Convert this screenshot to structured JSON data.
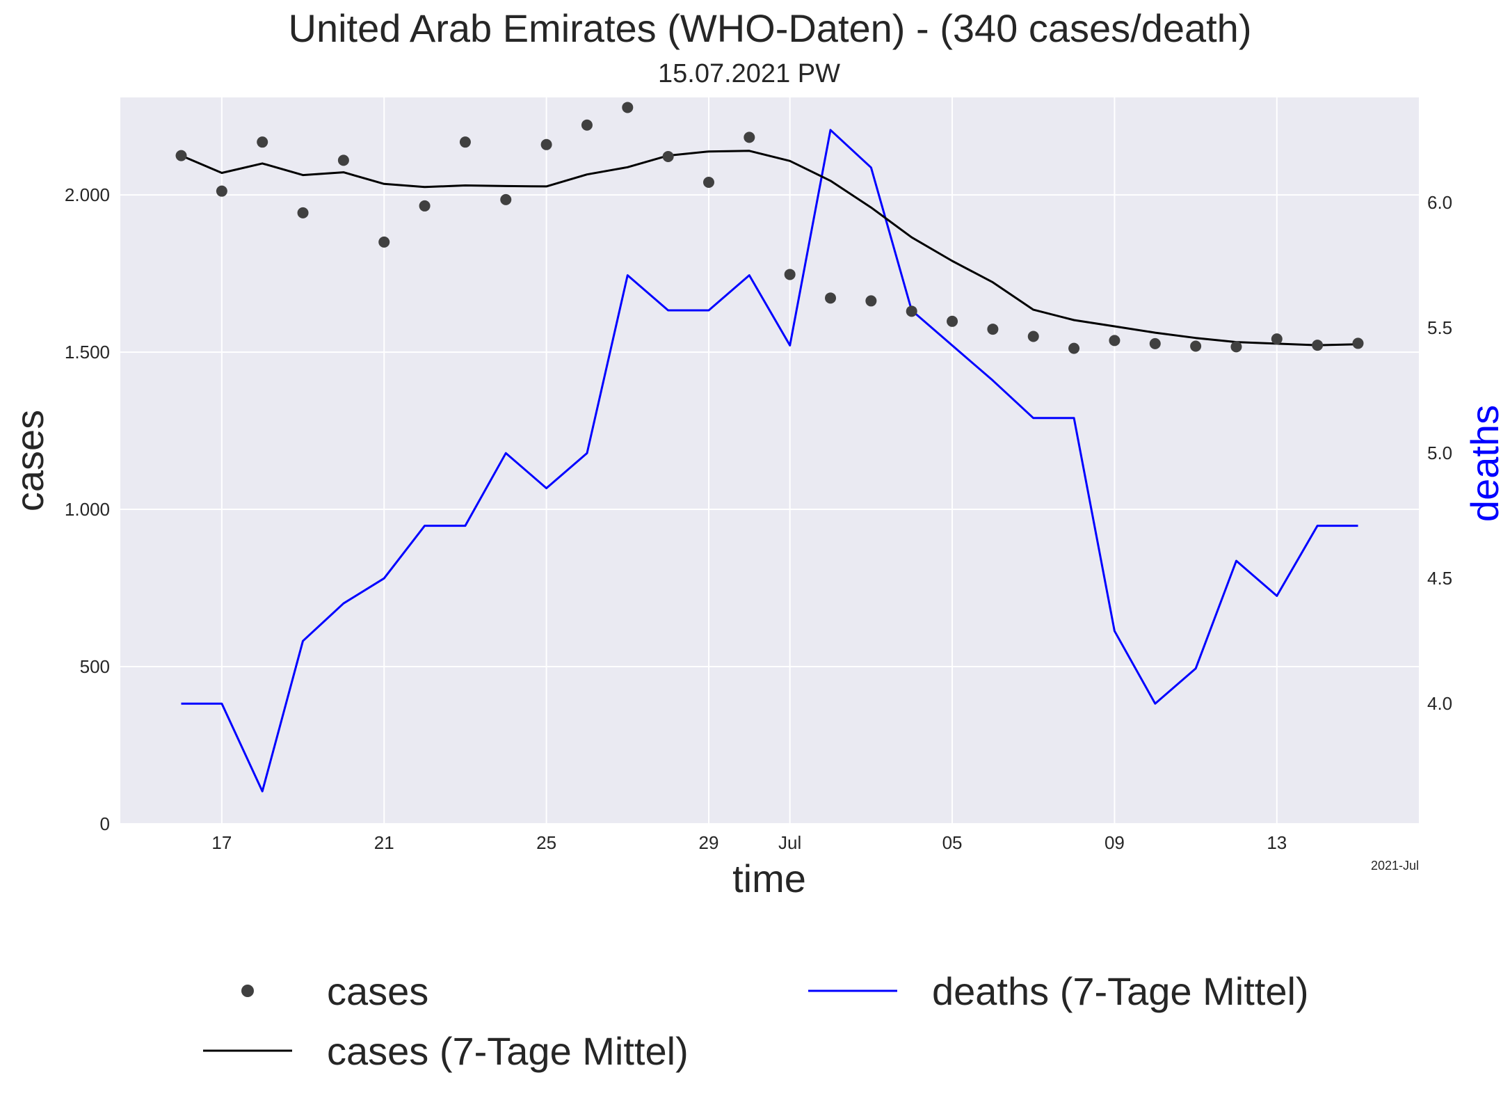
{
  "chart_data": {
    "type": "line",
    "title": "United Arab Emirates (WHO-Daten) - (340 cases/death)",
    "subtitle": "15.07.2021 PW",
    "xlabel": "time",
    "ylabel": "cases",
    "ylabel_right": "deaths",
    "x_offset_label": "2021-Jul",
    "x_dates": [
      "2021-06-16",
      "2021-06-17",
      "2021-06-18",
      "2021-06-19",
      "2021-06-20",
      "2021-06-21",
      "2021-06-22",
      "2021-06-23",
      "2021-06-24",
      "2021-06-25",
      "2021-06-26",
      "2021-06-27",
      "2021-06-28",
      "2021-06-29",
      "2021-06-30",
      "2021-07-01",
      "2021-07-02",
      "2021-07-03",
      "2021-07-04",
      "2021-07-05",
      "2021-07-06",
      "2021-07-07",
      "2021-07-08",
      "2021-07-09",
      "2021-07-10",
      "2021-07-11",
      "2021-07-12",
      "2021-07-13",
      "2021-07-14",
      "2021-07-15"
    ],
    "x_ticks": [
      {
        "date": "2021-06-17",
        "label": "17"
      },
      {
        "date": "2021-06-21",
        "label": "21"
      },
      {
        "date": "2021-06-25",
        "label": "25"
      },
      {
        "date": "2021-06-29",
        "label": "29"
      },
      {
        "date": "2021-07-01",
        "label": "Jul"
      },
      {
        "date": "2021-07-05",
        "label": "05"
      },
      {
        "date": "2021-07-09",
        "label": "09"
      },
      {
        "date": "2021-07-13",
        "label": "13"
      }
    ],
    "xlim": [
      "2021-06-14T12:00",
      "2021-07-16T12:00"
    ],
    "ylim_left": [
      0,
      2310
    ],
    "yticks_left": [
      {
        "value": 0,
        "label": "0"
      },
      {
        "value": 500,
        "label": "500"
      },
      {
        "value": 1000,
        "label": "1.000"
      },
      {
        "value": 1500,
        "label": "1.500"
      },
      {
        "value": 2000,
        "label": "2.000"
      }
    ],
    "ylim_right": [
      3.52,
      6.42
    ],
    "yticks_right": [
      {
        "value": 4.0,
        "label": "4.0"
      },
      {
        "value": 4.5,
        "label": "4.5"
      },
      {
        "value": 5.0,
        "label": "5.0"
      },
      {
        "value": 5.5,
        "label": "5.5"
      },
      {
        "value": 6.0,
        "label": "6.0"
      }
    ],
    "grid": true,
    "legend_position": "bottom",
    "series": [
      {
        "name": "cases",
        "axis": "left",
        "style": "scatter",
        "color": "#404040",
        "values": [
          2125,
          2012,
          2168,
          1943,
          2110,
          1850,
          1965,
          2168,
          1985,
          2160,
          2222,
          2278,
          2122,
          2040,
          2183,
          1747,
          1672,
          1663,
          1630,
          1598,
          1573,
          1550,
          1512,
          1537,
          1527,
          1519,
          1517,
          1542,
          1522,
          1528
        ]
      },
      {
        "name": "cases (7-Tage Mittel)",
        "axis": "left",
        "style": "line",
        "color": "#000000",
        "values": [
          2125,
          2070,
          2100,
          2063,
          2072,
          2035,
          2025,
          2030,
          2028,
          2027,
          2065,
          2088,
          2125,
          2138,
          2140,
          2108,
          2045,
          1960,
          1865,
          1790,
          1722,
          1635,
          1602,
          1582,
          1562,
          1545,
          1532,
          1527,
          1522,
          1525
        ]
      },
      {
        "name": "deaths (7-Tage Mittel)",
        "axis": "right",
        "style": "line",
        "color": "#0000ff",
        "values": [
          4.0,
          4.0,
          3.65,
          4.25,
          4.4,
          4.5,
          4.71,
          4.71,
          5.0,
          4.86,
          5.0,
          5.71,
          5.57,
          5.57,
          5.71,
          5.43,
          6.29,
          6.14,
          5.57,
          5.43,
          5.29,
          5.14,
          5.14,
          4.29,
          4.0,
          4.14,
          4.57,
          4.43,
          4.71,
          4.71
        ]
      }
    ]
  }
}
